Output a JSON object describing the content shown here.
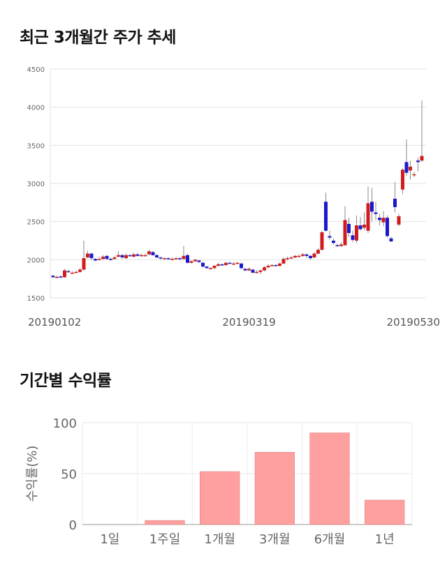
{
  "section1": {
    "title": "최근 3개월간 주가 추세"
  },
  "section2": {
    "title": "기간별 수익률"
  },
  "chart_data": [
    {
      "type": "candlestick",
      "title": "최근 3개월간 주가 추세",
      "ylim": [
        1500,
        4500
      ],
      "yticks": [
        1500,
        2000,
        2500,
        3000,
        3500,
        4000,
        4500
      ],
      "x_tick_labels": [
        {
          "label": "20190102",
          "index": 0
        },
        {
          "label": "20190319",
          "index": 51
        },
        {
          "label": "20190530",
          "index": 100
        }
      ],
      "grid": true,
      "colors": {
        "up": "#d01c1c",
        "down": "#1a1acc",
        "wick": "#888888"
      },
      "candles": [
        [
          1790,
          1770,
          1800,
          1765
        ],
        [
          1770,
          1775,
          1790,
          1760
        ],
        [
          1780,
          1775,
          1795,
          1760
        ],
        [
          1770,
          1860,
          1880,
          1765
        ],
        [
          1850,
          1840,
          1870,
          1830
        ],
        [
          1830,
          1830,
          1850,
          1820
        ],
        [
          1830,
          1840,
          1855,
          1825
        ],
        [
          1840,
          1870,
          1890,
          1830
        ],
        [
          1870,
          2020,
          2250,
          1860
        ],
        [
          2030,
          2080,
          2120,
          2020
        ],
        [
          2080,
          2020,
          2090,
          2000
        ],
        [
          2010,
          1990,
          2020,
          1980
        ],
        [
          2000,
          2010,
          2040,
          1990
        ],
        [
          2010,
          2040,
          2060,
          2000
        ],
        [
          2050,
          2010,
          2060,
          2000
        ],
        [
          2010,
          2000,
          2030,
          1990
        ],
        [
          2010,
          2030,
          2050,
          2000
        ],
        [
          2040,
          2060,
          2110,
          2030
        ],
        [
          2060,
          2030,
          2070,
          2010
        ],
        [
          2020,
          2060,
          2080,
          2010
        ],
        [
          2060,
          2050,
          2070,
          2040
        ],
        [
          2040,
          2070,
          2090,
          2030
        ],
        [
          2070,
          2050,
          2090,
          2040
        ],
        [
          2050,
          2060,
          2080,
          2040
        ],
        [
          2060,
          2060,
          2080,
          2040
        ],
        [
          2070,
          2110,
          2130,
          2060
        ],
        [
          2100,
          2060,
          2110,
          2050
        ],
        [
          2060,
          2030,
          2070,
          2020
        ],
        [
          2030,
          2020,
          2040,
          2000
        ],
        [
          2020,
          2020,
          2030,
          2010
        ],
        [
          2020,
          2010,
          2030,
          2000
        ],
        [
          2010,
          2010,
          2030,
          2000
        ],
        [
          2010,
          2020,
          2030,
          2000
        ],
        [
          2020,
          2010,
          2030,
          2000
        ],
        [
          2010,
          2050,
          2180,
          2000
        ],
        [
          2060,
          1960,
          2080,
          1950
        ],
        [
          1960,
          1980,
          1990,
          1950
        ],
        [
          1980,
          2000,
          2010,
          1970
        ],
        [
          1990,
          1970,
          2000,
          1960
        ],
        [
          1960,
          1910,
          1970,
          1900
        ],
        [
          1910,
          1890,
          1920,
          1880
        ],
        [
          1880,
          1890,
          1900,
          1870
        ],
        [
          1890,
          1920,
          1930,
          1880
        ],
        [
          1920,
          1940,
          1960,
          1910
        ],
        [
          1940,
          1930,
          1950,
          1920
        ],
        [
          1930,
          1960,
          1970,
          1920
        ],
        [
          1960,
          1950,
          1970,
          1940
        ],
        [
          1950,
          1950,
          1970,
          1930
        ],
        [
          1950,
          1960,
          1970,
          1940
        ],
        [
          1950,
          1890,
          1960,
          1870
        ],
        [
          1880,
          1860,
          1890,
          1850
        ],
        [
          1860,
          1880,
          1900,
          1850
        ],
        [
          1870,
          1830,
          1880,
          1820
        ],
        [
          1830,
          1840,
          1860,
          1820
        ],
        [
          1840,
          1860,
          1870,
          1810
        ],
        [
          1860,
          1900,
          1920,
          1850
        ],
        [
          1900,
          1920,
          1940,
          1890
        ],
        [
          1920,
          1930,
          1940,
          1910
        ],
        [
          1930,
          1920,
          1940,
          1910
        ],
        [
          1920,
          1950,
          1960,
          1910
        ],
        [
          1950,
          2010,
          2030,
          1940
        ],
        [
          2010,
          2020,
          2040,
          1990
        ],
        [
          2020,
          2030,
          2050,
          2010
        ],
        [
          2030,
          2050,
          2060,
          2020
        ],
        [
          2040,
          2050,
          2070,
          2030
        ],
        [
          2050,
          2070,
          2090,
          2040
        ],
        [
          2070,
          2050,
          2080,
          2020
        ],
        [
          2050,
          2020,
          2060,
          2000
        ],
        [
          2030,
          2080,
          2100,
          2020
        ],
        [
          2080,
          2130,
          2150,
          2070
        ],
        [
          2130,
          2360,
          2380,
          2120
        ],
        [
          2760,
          2380,
          2880,
          2370
        ],
        [
          2310,
          2290,
          2380,
          2260
        ],
        [
          2250,
          2220,
          2280,
          2200
        ],
        [
          2190,
          2180,
          2210,
          2170
        ],
        [
          2180,
          2200,
          2230,
          2170
        ],
        [
          2190,
          2520,
          2700,
          2180
        ],
        [
          2470,
          2350,
          2550,
          2300
        ],
        [
          2320,
          2260,
          2380,
          2230
        ],
        [
          2250,
          2450,
          2580,
          2220
        ],
        [
          2450,
          2400,
          2560,
          2380
        ],
        [
          2420,
          2460,
          2620,
          2390
        ],
        [
          2380,
          2740,
          2960,
          2350
        ],
        [
          2760,
          2630,
          2940,
          2500
        ],
        [
          2620,
          2600,
          2760,
          2520
        ],
        [
          2550,
          2520,
          2600,
          2450
        ],
        [
          2490,
          2550,
          2640,
          2440
        ],
        [
          2550,
          2310,
          2580,
          2290
        ],
        [
          2280,
          2240,
          2300,
          2230
        ],
        [
          2800,
          2690,
          3020,
          2620
        ],
        [
          2460,
          2570,
          2600,
          2440
        ],
        [
          2920,
          3180,
          3200,
          2860
        ],
        [
          3280,
          3140,
          3580,
          3100
        ],
        [
          3170,
          3220,
          3300,
          3050
        ],
        [
          3120,
          3120,
          3150,
          3080
        ],
        [
          3300,
          3280,
          3340,
          3160
        ],
        [
          3300,
          3360,
          4090,
          3280
        ]
      ]
    },
    {
      "type": "bar",
      "title": "기간별 수익률",
      "ylabel": "수익률(%)",
      "ylim": [
        0,
        100
      ],
      "yticks": [
        0,
        50,
        100
      ],
      "categories": [
        "1일",
        "1주일",
        "1개월",
        "3개월",
        "6개월",
        "1년"
      ],
      "values": [
        0,
        4,
        52,
        71,
        90,
        24
      ],
      "grid": true,
      "colors": {
        "bar": "#ffa0a0",
        "bar_stroke": "#e08080"
      }
    }
  ]
}
